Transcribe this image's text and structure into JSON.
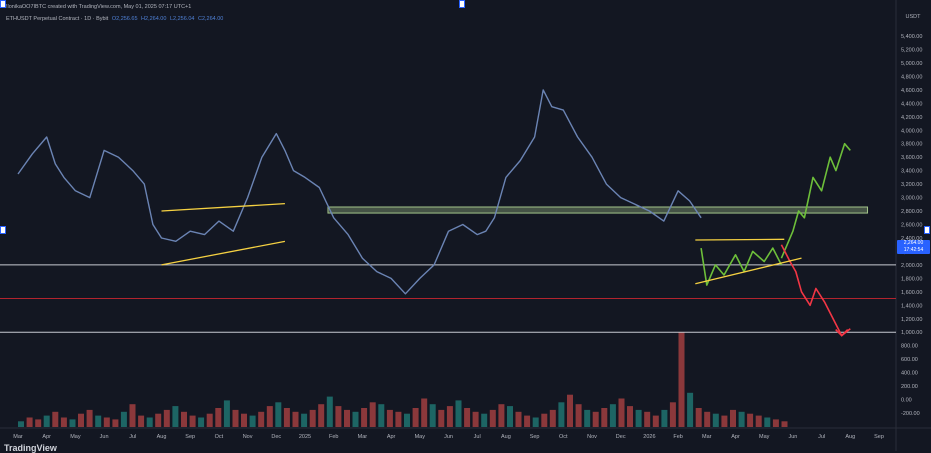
{
  "header": {
    "line1": "!lonikaOO7IBTC created with TradingView.com, May 01, 2025 07:17 UTC+1",
    "symbol": "ETHUSDT Perpetual Contract · 1D · Bybit",
    "open": "O2,256.65",
    "high": "H2,264.00",
    "low": "L2,256.04",
    "close": "C2,264.00"
  },
  "currency": "USDT",
  "last_price": "2,264.00",
  "countdown": "17:42:54",
  "footer_logo": "TradingView",
  "colors": {
    "background": "#131722",
    "price_line": "#6b84b4",
    "projection_up": "#6dbf3a",
    "projection_down": "#f23645",
    "support_zone": "#a3c48a",
    "trendline": "#f5d142",
    "hline_white": "#c8cad1",
    "hline_red": "#b2242e",
    "last_price": "#2962ff"
  },
  "chart_data": {
    "type": "line",
    "x_unit": "months since Mar 2024",
    "x_tick_labels": [
      "Mar",
      "Apr",
      "May",
      "Jun",
      "Jul",
      "Aug",
      "Sep",
      "Oct",
      "Nov",
      "Dec",
      "2025",
      "Feb",
      "Mar",
      "Apr",
      "May",
      "Jun",
      "Jul",
      "Aug",
      "Sep",
      "Oct",
      "Nov",
      "Dec",
      "2026",
      "Feb",
      "Mar",
      "Apr",
      "May",
      "Jun",
      "Jul",
      "Aug",
      "Sep"
    ],
    "y_ticks": [
      "5,400.00",
      "5,200.00",
      "5,000.00",
      "4,800.00",
      "4,600.00",
      "4,400.00",
      "4,200.00",
      "4,000.00",
      "3,800.00",
      "3,600.00",
      "3,400.00",
      "3,200.00",
      "3,000.00",
      "2,800.00",
      "2,600.00",
      "2,400.00",
      "2,200.00",
      "2,000.00",
      "1,800.00",
      "1,600.00",
      "1,400.00",
      "1,200.00",
      "1,000.00",
      "800.00",
      "600.00",
      "400.00",
      "200.00",
      "0.00",
      "-200.00"
    ],
    "ylim": [
      -200,
      5600
    ],
    "grid": false,
    "series": [
      {
        "x": [
          0,
          0.5,
          1,
          1.3,
          1.6,
          2,
          2.5,
          3,
          3.5,
          4,
          4.4,
          4.7,
          5,
          5.5,
          6,
          6.5,
          7,
          7.5,
          8,
          8.5,
          9,
          9.3,
          9.6,
          10,
          10.5,
          11,
          11.5,
          12,
          12.5,
          13,
          13.5,
          14,
          14.5,
          15,
          15.5,
          16,
          16.3,
          16.6,
          17,
          17.5,
          18,
          18.3,
          18.6,
          19,
          19.5,
          20,
          20.5,
          21,
          21.5,
          22,
          22.5,
          23,
          23.4,
          23.8
        ],
        "y": [
          3350,
          3650,
          3900,
          3500,
          3300,
          3100,
          3000,
          3700,
          3600,
          3400,
          3200,
          2600,
          2400,
          2350,
          2500,
          2450,
          2650,
          2500,
          3000,
          3600,
          3950,
          3700,
          3400,
          3300,
          3150,
          2700,
          2450,
          2100,
          1900,
          1800,
          1570,
          1800,
          2000,
          2500,
          2600,
          2450,
          2500,
          2700,
          3300,
          3550,
          3900,
          4600,
          4350,
          4300,
          3900,
          3600,
          3200,
          3000,
          2900,
          2800,
          2650,
          3100,
          2950,
          2700
        ],
        "style": "price"
      },
      {
        "x": [
          23.8,
          24,
          24.3,
          24.6,
          25,
          25.3,
          25.6,
          26,
          26.3,
          26.6
        ],
        "y": [
          2250,
          1700,
          2000,
          1850,
          2150,
          1900,
          2200,
          2050,
          2250,
          2000
        ],
        "style": "projection_range"
      },
      {
        "x": [
          26.6,
          27,
          27.2,
          27.4,
          27.7,
          28,
          28.3,
          28.5,
          28.8,
          29
        ],
        "y": [
          2100,
          2500,
          2800,
          2700,
          3300,
          3100,
          3600,
          3400,
          3800,
          3700
        ],
        "style": "projection_up"
      },
      {
        "x": [
          26.6,
          26.9,
          27.1,
          27.3,
          27.6,
          27.8,
          28.1,
          28.4,
          28.7,
          29
        ],
        "y": [
          2300,
          2050,
          1900,
          1600,
          1400,
          1650,
          1450,
          1200,
          950,
          1050
        ],
        "style": "projection_down"
      }
    ],
    "volume": [
      3,
      5,
      4,
      6,
      8,
      5,
      4,
      7,
      9,
      6,
      5,
      4,
      8,
      12,
      6,
      5,
      7,
      9,
      11,
      8,
      6,
      5,
      7,
      10,
      14,
      9,
      7,
      6,
      8,
      11,
      13,
      10,
      8,
      7,
      9,
      12,
      16,
      11,
      9,
      8,
      10,
      13,
      12,
      9,
      8,
      7,
      10,
      15,
      12,
      9,
      11,
      14,
      10,
      8,
      7,
      9,
      12,
      11,
      8,
      6,
      5,
      7,
      9,
      13,
      17,
      12,
      9,
      8,
      10,
      12,
      15,
      11,
      9,
      8,
      6,
      9,
      13,
      50,
      18,
      10,
      8,
      7,
      6,
      9,
      8,
      7,
      6,
      5,
      4,
      3
    ],
    "annotations": [
      {
        "type": "zone",
        "x": [
          10.8,
          29.6
        ],
        "y": [
          2770,
          2860
        ]
      },
      {
        "type": "trendline",
        "x": [
          5,
          9.3
        ],
        "y": [
          2800,
          2910
        ]
      },
      {
        "type": "trendline",
        "x": [
          5,
          9.3
        ],
        "y": [
          2000,
          2350
        ]
      },
      {
        "type": "trendline",
        "x": [
          23.6,
          26.7
        ],
        "y": [
          2370,
          2380
        ]
      },
      {
        "type": "trendline",
        "x": [
          23.6,
          27.3
        ],
        "y": [
          1720,
          2100
        ]
      },
      {
        "type": "hline",
        "y": 2000,
        "style": "white"
      },
      {
        "type": "hline",
        "y": 1500,
        "style": "red"
      },
      {
        "type": "hline",
        "y": 1000,
        "style": "white"
      }
    ]
  }
}
